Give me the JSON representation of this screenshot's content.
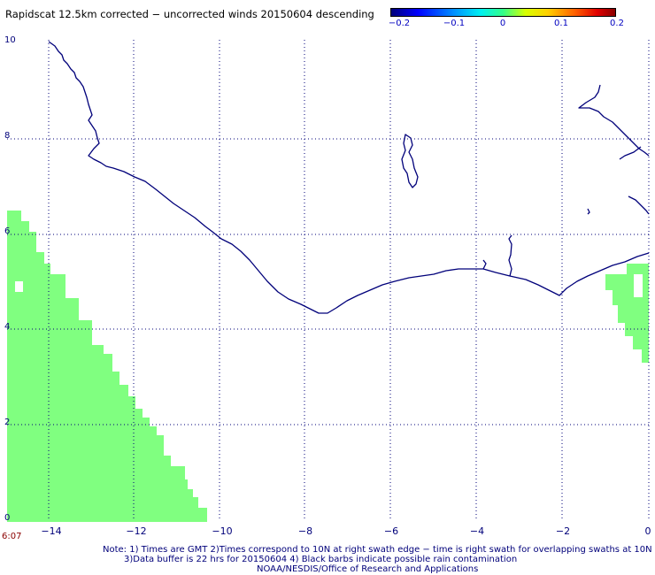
{
  "title": "Rapidscat 12.5km corrected − uncorrected winds 20150604 descending",
  "colorbar": {
    "ticks": [
      "−0.2",
      "−0.1",
      "0",
      "0.1",
      "0.2"
    ],
    "range": [
      -0.2,
      0.2
    ],
    "colors": [
      "#00007a",
      "#0000ff",
      "#00f0f0",
      "#33ff88",
      "#d8ff00",
      "#ff6000",
      "#8a0000"
    ]
  },
  "map": {
    "x_ticks": [
      "−14",
      "−12",
      "−10",
      "−8",
      "−6",
      "−4",
      "−2",
      "0"
    ],
    "y_ticks": [
      "0",
      "2",
      "4",
      "6",
      "8",
      "10"
    ],
    "lon_range": [
      -15,
      0
    ],
    "lat_range": [
      0,
      10
    ],
    "grid": true,
    "coast_color": "#00007a",
    "swath_color": "#80ff80"
  },
  "corner_label": "6:07",
  "notes": [
    "Note: 1) Times are GMT 2)Times correspond to 10N at right swath edge − time is right swath for overlapping swaths at 10N",
    "3)Data buffer is 22 hrs for 20150604 4) Black barbs indicate possible rain contamination",
    "NOAA/NESDIS/Office of Research and Applications"
  ]
}
